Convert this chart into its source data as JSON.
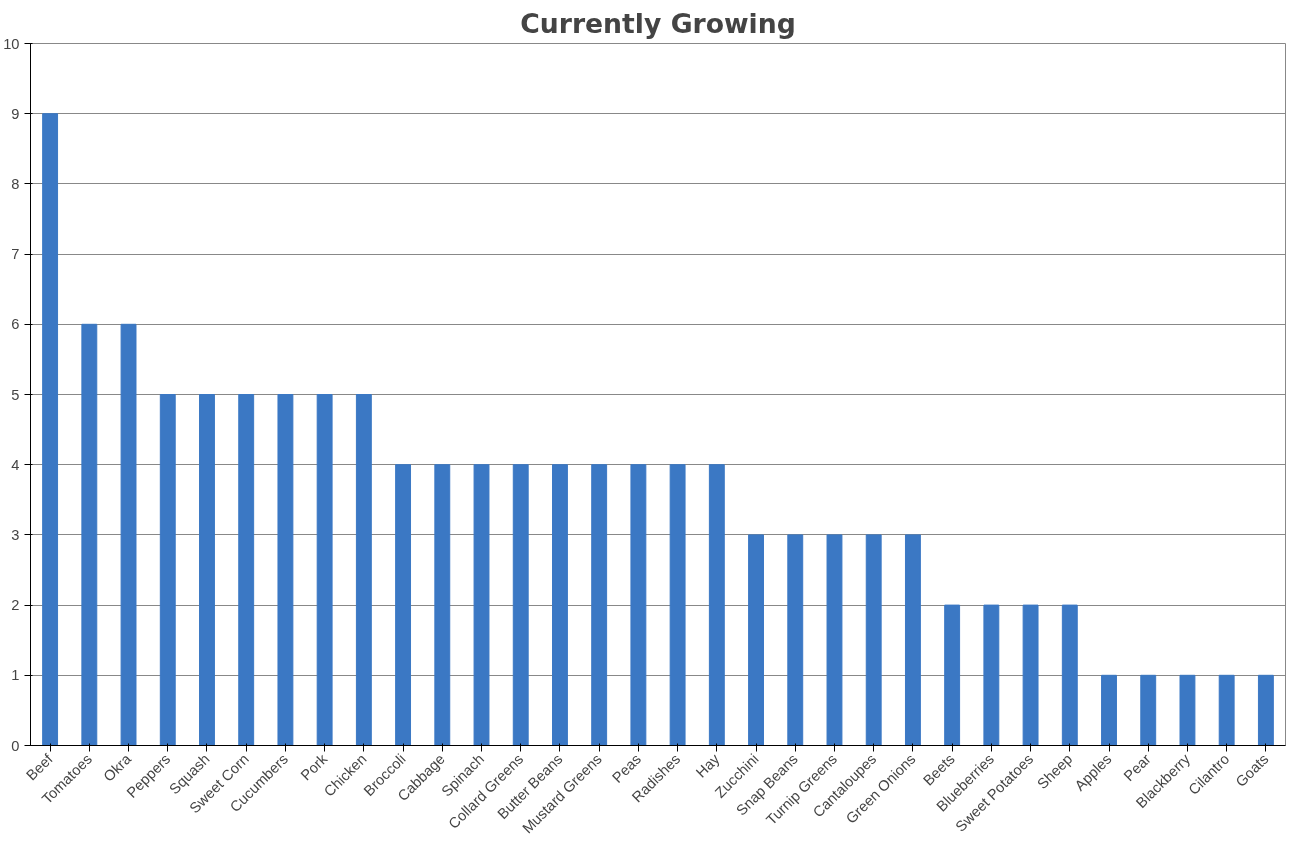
{
  "chart_data": {
    "type": "bar",
    "title": "Currently Growing",
    "categories": [
      "Beef",
      "Tomatoes",
      "Okra",
      "Peppers",
      "Squash",
      "Sweet Corn",
      "Cucumbers",
      "Pork",
      "Chicken",
      "Broccoli",
      "Cabbage",
      "Spinach",
      "Collard Greens",
      "Butter Beans",
      "Mustard Greens",
      "Peas",
      "Radishes",
      "Hay",
      "Zucchini",
      "Snap Beans",
      "Turnip Greens",
      "Cantaloupes",
      "Green Onions",
      "Beets",
      "Blueberries",
      "Sweet Potatoes",
      "Sheep",
      "Apples",
      "Pear",
      "Blackberry",
      "Cilantro",
      "Goats"
    ],
    "values": [
      9,
      6,
      6,
      5,
      5,
      5,
      5,
      5,
      5,
      4,
      4,
      4,
      4,
      4,
      4,
      4,
      4,
      4,
      3,
      3,
      3,
      3,
      3,
      2,
      2,
      2,
      2,
      1,
      1,
      1,
      1,
      1
    ],
    "color": "#3b78c4",
    "ylim": [
      0,
      10
    ],
    "yticks": [
      0,
      1,
      2,
      3,
      4,
      5,
      6,
      7,
      8,
      9,
      10
    ],
    "grid": "y"
  }
}
